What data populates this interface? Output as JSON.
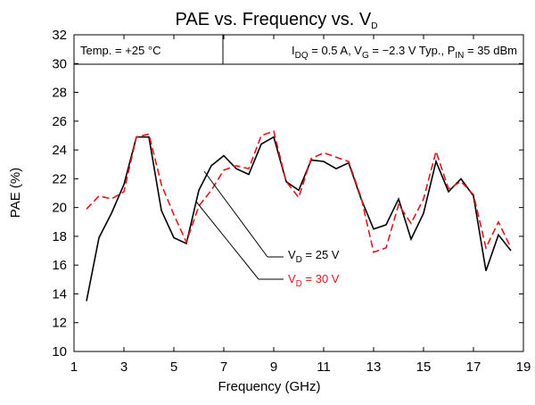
{
  "chart_data": {
    "type": "line",
    "title": [
      "PAE vs. Frequency vs. V",
      "D"
    ],
    "x_label": "Frequency (GHz)",
    "y_label": "PAE (%)",
    "annotations": [
      [
        "Temp. = +25 °C"
      ],
      [
        "I",
        "DQ",
        " = 0.5 A, V",
        "G",
        " = −2.3 V Typ., P",
        "IN",
        " = 35 dBm"
      ]
    ],
    "x": [
      1.5,
      2,
      2.5,
      3,
      3.5,
      4,
      4.5,
      5,
      5.5,
      6,
      6.5,
      7,
      7.5,
      8,
      8.5,
      9,
      9.5,
      10,
      10.5,
      11,
      11.5,
      12,
      12.5,
      13,
      13.5,
      14,
      14.5,
      15,
      15.5,
      16,
      16.5,
      17,
      17.5,
      18,
      18.5
    ],
    "series": [
      {
        "name": [
          "V",
          "D",
          " = 25 V"
        ],
        "color": "#000000",
        "dash": false,
        "values": [
          13.5,
          17.9,
          19.6,
          21.6,
          24.9,
          24.9,
          19.8,
          17.9,
          17.5,
          21.2,
          22.9,
          23.6,
          22.7,
          22.3,
          24.4,
          24.9,
          21.8,
          21.2,
          23.3,
          23.2,
          22.7,
          23.1,
          20.6,
          18.5,
          18.8,
          20.6,
          17.8,
          19.6,
          23.2,
          21.1,
          22.0,
          20.8,
          15.6,
          18.1,
          17.0
        ]
      },
      {
        "name": [
          "V",
          "D",
          " = 30 V"
        ],
        "color": "#e8141c",
        "dash": true,
        "values": [
          19.9,
          20.8,
          20.6,
          21.1,
          24.9,
          25.1,
          21.6,
          19.5,
          17.6,
          20.1,
          21.2,
          22.6,
          22.9,
          22.7,
          25.0,
          25.3,
          21.8,
          20.7,
          23.4,
          23.8,
          23.5,
          23.2,
          20.7,
          16.9,
          17.2,
          20.2,
          18.9,
          20.6,
          23.9,
          21.3,
          21.8,
          20.9,
          17.2,
          19.0,
          17.2
        ]
      }
    ],
    "xlim": [
      1,
      19
    ],
    "xticks": [
      1,
      3,
      5,
      7,
      9,
      11,
      13,
      15,
      17,
      19
    ],
    "ylim": [
      10,
      32
    ],
    "yticks": [
      10,
      12,
      14,
      16,
      18,
      20,
      22,
      24,
      26,
      28,
      30,
      32
    ],
    "grid": false
  }
}
